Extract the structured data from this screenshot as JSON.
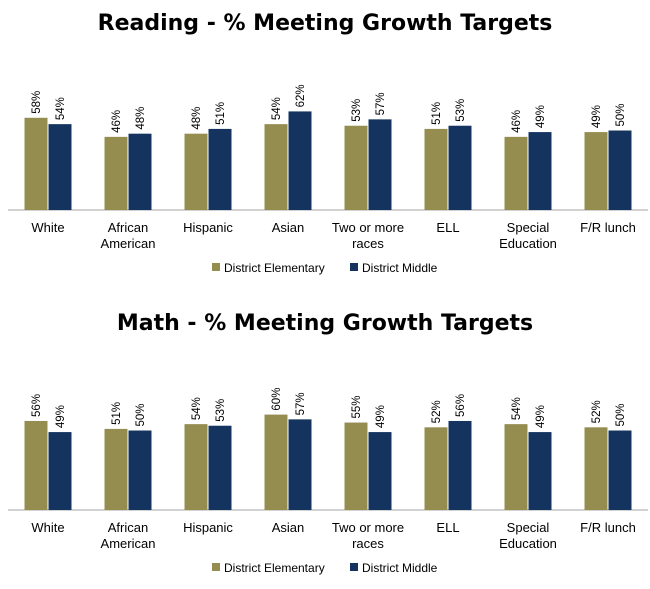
{
  "chart_data": [
    {
      "type": "bar",
      "title": "Reading - % Meeting Growth Targets",
      "categories": [
        "White",
        "African American",
        "Hispanic",
        "Asian",
        "Two or more races",
        "ELL",
        "Special Education",
        "F/R lunch"
      ],
      "category_lines": [
        [
          "White"
        ],
        [
          "African",
          "American"
        ],
        [
          "Hispanic"
        ],
        [
          "Asian"
        ],
        [
          "Two or more",
          "races"
        ],
        [
          "ELL"
        ],
        [
          "Special",
          "Education"
        ],
        [
          "F/R lunch"
        ]
      ],
      "series": [
        {
          "name": "District Elementary",
          "values": [
            58,
            46,
            48,
            54,
            53,
            51,
            46,
            49
          ],
          "labels": [
            "58%",
            "46%",
            "48%",
            "54%",
            "53%",
            "51%",
            "46%",
            "49%"
          ],
          "color": "#958c4f"
        },
        {
          "name": "District Middle",
          "values": [
            54,
            48,
            51,
            62,
            57,
            53,
            49,
            50
          ],
          "labels": [
            "54%",
            "48%",
            "51%",
            "62%",
            "57%",
            "53%",
            "49%",
            "50%"
          ],
          "color": "#14345f"
        }
      ],
      "ylim": [
        0,
        100
      ],
      "legend": "bottom",
      "grid": false
    },
    {
      "type": "bar",
      "title": "Math - % Meeting Growth Targets",
      "categories": [
        "White",
        "African American",
        "Hispanic",
        "Asian",
        "Two or more races",
        "ELL",
        "Special Education",
        "F/R lunch"
      ],
      "category_lines": [
        [
          "White"
        ],
        [
          "African",
          "American"
        ],
        [
          "Hispanic"
        ],
        [
          "Asian"
        ],
        [
          "Two or more",
          "races"
        ],
        [
          "ELL"
        ],
        [
          "Special",
          "Education"
        ],
        [
          "F/R lunch"
        ]
      ],
      "series": [
        {
          "name": "District Elementary",
          "values": [
            56,
            51,
            54,
            60,
            55,
            52,
            54,
            52
          ],
          "labels": [
            "56%",
            "51%",
            "54%",
            "60%",
            "55%",
            "52%",
            "54%",
            "52%"
          ],
          "color": "#958c4f"
        },
        {
          "name": "District Middle",
          "values": [
            49,
            50,
            53,
            57,
            49,
            56,
            49,
            50
          ],
          "labels": [
            "49%",
            "50%",
            "53%",
            "57%",
            "49%",
            "56%",
            "49%",
            "50%"
          ],
          "color": "#14345f"
        }
      ],
      "ylim": [
        0,
        100
      ],
      "legend": "bottom",
      "grid": false
    }
  ]
}
